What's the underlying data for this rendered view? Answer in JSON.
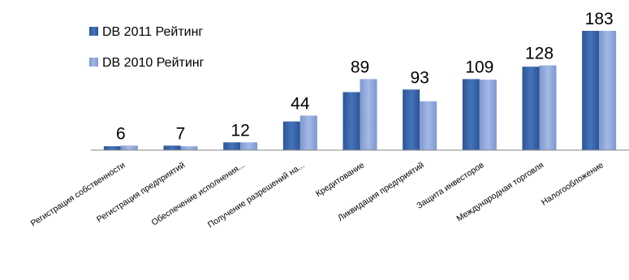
{
  "chart_data": {
    "type": "bar",
    "title": "",
    "xlabel": "",
    "ylabel": "",
    "categories": [
      "Регистрация собственности",
      "Регистрация предприятий",
      "Обеспечение исполнения...",
      "Получение разрешений на...",
      "Кредитование",
      "Ликвидация предприятий",
      "Защита инвесторов",
      "Международная торговля",
      "Налогообложение"
    ],
    "series": [
      {
        "name": "DB 2011 Рейтинг",
        "values": [
          6,
          7,
          12,
          44,
          89,
          93,
          109,
          128,
          183
        ],
        "color": "#3a66ab"
      },
      {
        "name": "DB 2010 Рейтинг",
        "values": [
          7,
          6,
          12,
          53,
          109,
          75,
          108,
          130,
          183
        ],
        "color": "#8fa9dc"
      }
    ],
    "data_labels": [
      "6",
      "7",
      "12",
      "44",
      "89",
      "93",
      "109",
      "128",
      "183"
    ],
    "ylim": [
      0,
      183
    ],
    "grid": false,
    "legend": "top-left"
  }
}
